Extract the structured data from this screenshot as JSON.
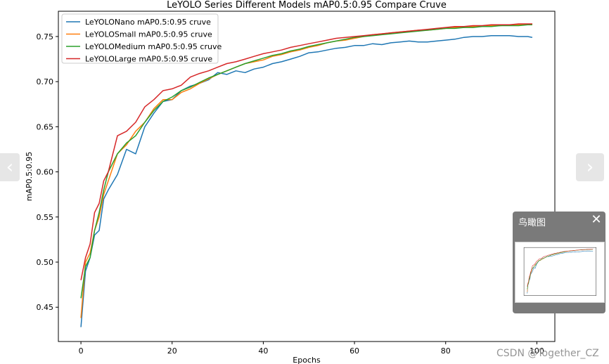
{
  "chart_data": {
    "type": "line",
    "title": "LeYOLO Series Different Models mAP0.5:0.95 Compare Cruve",
    "xlabel": "Epochs",
    "ylabel": "mAP0.5:0.95",
    "xlim": [
      -4.95,
      103.95
    ],
    "ylim": [
      0.412,
      0.778
    ],
    "xticks": [
      0,
      20,
      40,
      60,
      80,
      100
    ],
    "yticks": [
      0.45,
      0.5,
      0.55,
      0.6,
      0.65,
      0.7,
      0.75
    ],
    "ytick_labels": [
      "0.45",
      "0.50",
      "0.55",
      "0.60",
      "0.65",
      "0.70",
      "0.75"
    ],
    "grid": false,
    "legend_position": "top-left",
    "series": [
      {
        "name": "LeYOLONano mAP0.5:0.95 cruve",
        "color": "#1f77b4",
        "x": [
          0,
          1,
          2,
          3,
          4,
          5,
          6,
          8,
          10,
          12,
          14,
          16,
          18,
          20,
          22,
          24,
          26,
          28,
          30,
          32,
          34,
          36,
          38,
          40,
          42,
          44,
          46,
          48,
          50,
          52,
          54,
          56,
          58,
          60,
          62,
          64,
          66,
          68,
          70,
          72,
          74,
          76,
          78,
          80,
          82,
          84,
          86,
          88,
          90,
          92,
          94,
          96,
          98,
          99
        ],
        "y": [
          0.428,
          0.49,
          0.505,
          0.53,
          0.535,
          0.57,
          0.58,
          0.597,
          0.625,
          0.62,
          0.65,
          0.665,
          0.678,
          0.68,
          0.69,
          0.695,
          0.698,
          0.702,
          0.71,
          0.708,
          0.712,
          0.71,
          0.714,
          0.716,
          0.72,
          0.722,
          0.725,
          0.728,
          0.732,
          0.733,
          0.735,
          0.737,
          0.738,
          0.74,
          0.74,
          0.742,
          0.741,
          0.743,
          0.744,
          0.745,
          0.744,
          0.744,
          0.745,
          0.746,
          0.747,
          0.749,
          0.75,
          0.75,
          0.751,
          0.751,
          0.751,
          0.75,
          0.75,
          0.749
        ]
      },
      {
        "name": "LeYOLOSmall mAP0.5:0.95 cruve",
        "color": "#ff7f0e",
        "x": [
          0,
          1,
          2,
          3,
          4,
          5,
          6,
          8,
          10,
          12,
          14,
          16,
          18,
          20,
          22,
          24,
          26,
          28,
          30,
          32,
          34,
          36,
          38,
          40,
          42,
          44,
          46,
          48,
          50,
          52,
          54,
          56,
          58,
          60,
          62,
          64,
          66,
          68,
          70,
          72,
          74,
          76,
          78,
          80,
          82,
          84,
          86,
          88,
          90,
          92,
          94,
          96,
          98,
          99
        ],
        "y": [
          0.438,
          0.5,
          0.51,
          0.535,
          0.55,
          0.575,
          0.59,
          0.62,
          0.63,
          0.645,
          0.655,
          0.67,
          0.68,
          0.68,
          0.688,
          0.692,
          0.698,
          0.703,
          0.708,
          0.712,
          0.716,
          0.72,
          0.722,
          0.724,
          0.728,
          0.73,
          0.733,
          0.735,
          0.738,
          0.74,
          0.743,
          0.745,
          0.746,
          0.748,
          0.75,
          0.752,
          0.753,
          0.754,
          0.755,
          0.756,
          0.757,
          0.757,
          0.758,
          0.759,
          0.76,
          0.76,
          0.761,
          0.761,
          0.762,
          0.762,
          0.763,
          0.763,
          0.763,
          0.764
        ]
      },
      {
        "name": "LeYOLOMedium mAP0.5:0.95 cruve",
        "color": "#2ca02c",
        "x": [
          0,
          1,
          2,
          3,
          4,
          5,
          6,
          8,
          10,
          12,
          14,
          16,
          18,
          20,
          22,
          24,
          26,
          28,
          30,
          32,
          34,
          36,
          38,
          40,
          42,
          44,
          46,
          48,
          50,
          52,
          54,
          56,
          58,
          60,
          62,
          64,
          66,
          68,
          70,
          72,
          74,
          76,
          78,
          80,
          82,
          84,
          86,
          88,
          90,
          92,
          94,
          96,
          98,
          99
        ],
        "y": [
          0.46,
          0.495,
          0.505,
          0.535,
          0.555,
          0.58,
          0.6,
          0.62,
          0.632,
          0.64,
          0.655,
          0.668,
          0.678,
          0.683,
          0.69,
          0.694,
          0.699,
          0.704,
          0.708,
          0.712,
          0.716,
          0.72,
          0.723,
          0.726,
          0.729,
          0.731,
          0.734,
          0.736,
          0.739,
          0.741,
          0.743,
          0.745,
          0.747,
          0.749,
          0.75,
          0.751,
          0.752,
          0.753,
          0.754,
          0.755,
          0.756,
          0.757,
          0.758,
          0.759,
          0.759,
          0.76,
          0.76,
          0.761,
          0.761,
          0.762,
          0.762,
          0.762,
          0.763,
          0.763
        ]
      },
      {
        "name": "LeYOLOLarge mAP0.5:0.95 cruve",
        "color": "#d62728",
        "x": [
          0,
          1,
          2,
          3,
          4,
          5,
          6,
          8,
          10,
          12,
          14,
          16,
          18,
          20,
          22,
          24,
          26,
          28,
          30,
          32,
          34,
          36,
          38,
          40,
          42,
          44,
          46,
          48,
          50,
          52,
          54,
          56,
          58,
          60,
          62,
          64,
          66,
          68,
          70,
          72,
          74,
          76,
          78,
          80,
          82,
          84,
          86,
          88,
          90,
          92,
          94,
          96,
          98,
          99
        ],
        "y": [
          0.48,
          0.505,
          0.52,
          0.555,
          0.565,
          0.59,
          0.6,
          0.64,
          0.645,
          0.655,
          0.672,
          0.68,
          0.69,
          0.692,
          0.696,
          0.705,
          0.709,
          0.712,
          0.716,
          0.72,
          0.722,
          0.725,
          0.728,
          0.731,
          0.733,
          0.735,
          0.738,
          0.74,
          0.742,
          0.744,
          0.746,
          0.748,
          0.749,
          0.75,
          0.751,
          0.752,
          0.753,
          0.754,
          0.755,
          0.756,
          0.757,
          0.758,
          0.759,
          0.76,
          0.761,
          0.761,
          0.762,
          0.762,
          0.763,
          0.763,
          0.763,
          0.764,
          0.764,
          0.764
        ]
      }
    ]
  },
  "nav": {
    "prev_icon": "‹",
    "next_icon": "›"
  },
  "overview": {
    "title": "鸟瞰图",
    "close_icon": "✕"
  },
  "watermark": "CSDN @Together_CZ"
}
